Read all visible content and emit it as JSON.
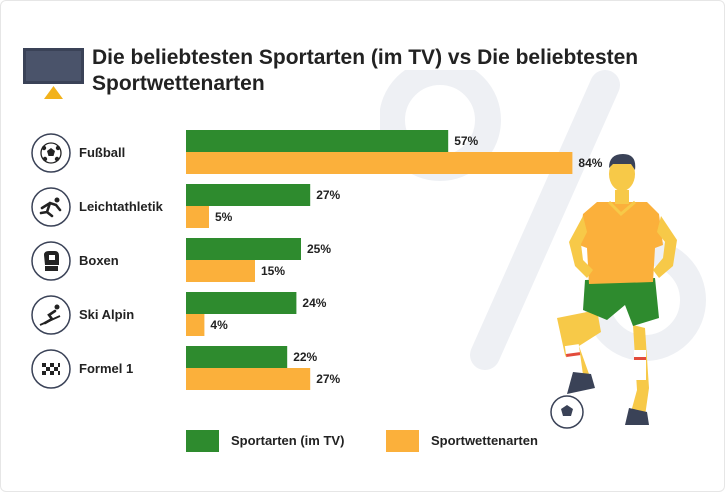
{
  "title": "Die beliebtesten Sportarten (im TV) vs Die beliebtesten Sportwettenarten",
  "colors": {
    "tv": "#2e8b2e",
    "bet": "#fbb03b",
    "text": "#222222",
    "icon_dark": "#3a4257",
    "accent": "#f2b21b"
  },
  "icons": [
    "soccer-ball-icon",
    "athlete-icon",
    "boxing-glove-icon",
    "skier-icon",
    "checkered-flag-icon"
  ],
  "legend": {
    "tv": "Sportarten (im TV)",
    "bet": "Sportwettenarten"
  },
  "chart_data": {
    "type": "bar",
    "orientation": "horizontal",
    "categories": [
      "Fußball",
      "Leichtathletik",
      "Boxen",
      "Ski Alpin",
      "Formel 1"
    ],
    "series": [
      {
        "name": "Sportarten (im TV)",
        "values": [
          57,
          27,
          25,
          24,
          22
        ],
        "labels": [
          "57%",
          "27%",
          "25%",
          "24%",
          "22%"
        ]
      },
      {
        "name": "Sportwettenarten",
        "values": [
          84,
          5,
          15,
          4,
          27
        ],
        "labels": [
          "84%",
          "5%",
          "15%",
          "4%",
          "27%"
        ]
      }
    ],
    "unit": "%",
    "xlim": [
      0,
      100
    ],
    "grid": false,
    "legend_position": "bottom"
  }
}
